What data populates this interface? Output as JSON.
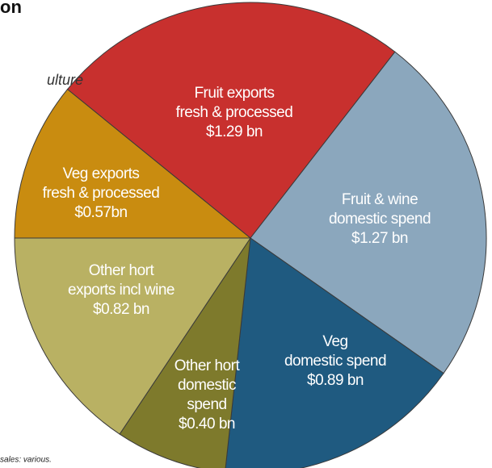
{
  "chart_data": {
    "type": "pie",
    "title": "on",
    "subtitle": "ulture",
    "source": "sales: various.",
    "categories": [
      [
        "Veg exports",
        "fresh & processed"
      ],
      [
        "Fruit exports",
        "fresh & processed"
      ],
      [
        "Fruit & wine",
        "domestic spend"
      ],
      [
        "Veg",
        "domestic spend"
      ],
      [
        "Other hort",
        "domestic",
        "spend"
      ],
      [
        "Other hort",
        "exports incl wine"
      ]
    ],
    "values": [
      0.57,
      1.29,
      1.27,
      0.89,
      0.4,
      0.82
    ],
    "value_labels": [
      "$0.57bn",
      "$1.29 bn",
      "$1.27 bn",
      "$0.89 bn",
      "$0.40 bn",
      "$0.82 bn"
    ],
    "colors": [
      "#c98c10",
      "#c8302e",
      "#8ba7bd",
      "#1f5a80",
      "#7e7a2c",
      "#b9b163"
    ]
  }
}
